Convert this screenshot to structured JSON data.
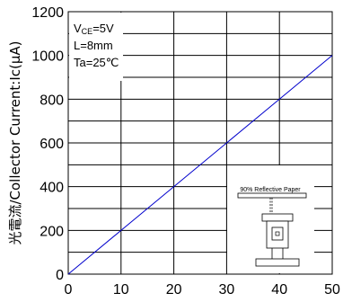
{
  "chart_data": {
    "type": "line",
    "ylabel": "光電流/Collector Current:Ic(μA)",
    "xlim": [
      0,
      50
    ],
    "ylim": [
      0,
      1200
    ],
    "x_ticks": [
      "0",
      "10",
      "20",
      "30",
      "40",
      "50"
    ],
    "y_ticks": [
      "0",
      "200",
      "400",
      "600",
      "800",
      "1000",
      "1200"
    ],
    "grid": true,
    "series": [
      {
        "x": [
          0,
          50
        ],
        "y": [
          0,
          1000
        ],
        "color": "#0000cc"
      }
    ],
    "conditions": {
      "vce_prefix": "V",
      "vce_sub": "CE",
      "vce_value": "=5V",
      "distance": "L=8mm",
      "temperature": "Ta=25℃"
    },
    "inset": {
      "label": "90% Reflective Paper"
    }
  }
}
